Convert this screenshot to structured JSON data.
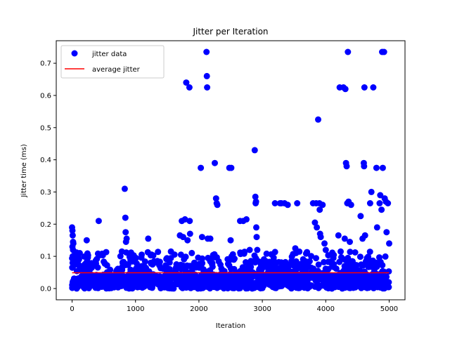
{
  "chart_data": {
    "type": "scatter",
    "title": "Jitter per Iteration",
    "xlabel": "Iteration",
    "ylabel": "Jitter time (ms)",
    "xlim": [
      -250,
      5250
    ],
    "ylim": [
      -0.035,
      0.77
    ],
    "xticks": [
      0,
      1000,
      2000,
      3000,
      4000,
      5000
    ],
    "yticks": [
      0.0,
      0.1,
      0.2,
      0.3,
      0.4,
      0.5,
      0.6,
      0.7
    ],
    "grid": false,
    "legend_position": "top-left",
    "series": [
      {
        "name": "jitter data",
        "kind": "scatter",
        "color": "#0000ff",
        "x": [
          0,
          5,
          10,
          15,
          20,
          5,
          15,
          10,
          5,
          20,
          30,
          60,
          90,
          120,
          230,
          420,
          830,
          840,
          845,
          850,
          860,
          1200,
          1700,
          1750,
          1800,
          1850,
          1855,
          1860,
          1730,
          1780,
          1820,
          2030,
          2050,
          2120,
          2125,
          2130,
          2140,
          2180,
          2250,
          2270,
          2280,
          2290,
          2480,
          2500,
          2510,
          2650,
          2700,
          2750,
          2800,
          2880,
          2890,
          2895,
          2900,
          2905,
          2910,
          2920,
          3200,
          3280,
          3300,
          3350,
          3400,
          3550,
          3520,
          3800,
          3830,
          3850,
          3860,
          3880,
          3900,
          3905,
          3910,
          3920,
          3950,
          3980,
          4000,
          4200,
          4220,
          4280,
          4300,
          4310,
          4320,
          4330,
          4340,
          4350,
          4360,
          4380,
          4400,
          4550,
          4580,
          4600,
          4605,
          4610,
          4620,
          4700,
          4720,
          4750,
          4800,
          4810,
          4850,
          4860,
          4880,
          4890,
          4900,
          4920,
          4930,
          4950,
          4960,
          4980,
          5000
        ],
        "y": [
          0.19,
          0.18,
          0.165,
          0.145,
          0.14,
          0.13,
          0.12,
          0.1,
          0.065,
          0.01,
          0.005,
          0.075,
          0.005,
          0.11,
          0.15,
          0.21,
          0.31,
          0.22,
          0.175,
          0.145,
          0.155,
          0.155,
          0.165,
          0.16,
          0.64,
          0.625,
          0.21,
          0.17,
          0.21,
          0.215,
          0.15,
          0.375,
          0.16,
          0.735,
          0.66,
          0.625,
          0.155,
          0.155,
          0.39,
          0.28,
          0.265,
          0.26,
          0.375,
          0.15,
          0.375,
          0.21,
          0.21,
          0.215,
          0.12,
          0.43,
          0.285,
          0.265,
          0.27,
          0.19,
          0.16,
          0.12,
          0.265,
          0.265,
          0.265,
          0.265,
          0.26,
          0.265,
          0.125,
          0.265,
          0.205,
          0.265,
          0.19,
          0.525,
          0.265,
          0.245,
          0.17,
          0.16,
          0.26,
          0.14,
          0.12,
          0.165,
          0.625,
          0.625,
          0.155,
          0.62,
          0.39,
          0.38,
          0.265,
          0.735,
          0.27,
          0.145,
          0.26,
          0.225,
          0.155,
          0.39,
          0.38,
          0.625,
          0.165,
          0.265,
          0.3,
          0.625,
          0.375,
          0.19,
          0.265,
          0.29,
          0.245,
          0.735,
          0.375,
          0.735,
          0.28,
          0.27,
          0.175,
          0.265,
          0.14
        ],
        "dense_band": {
          "x_range": [
            0,
            5000
          ],
          "y_range": [
            0.0,
            0.115
          ],
          "note": "thousands of points cluster between 0 and ~0.11 ms across all iterations"
        }
      },
      {
        "name": "average jitter",
        "kind": "line",
        "color": "#ff0000",
        "x": [
          0,
          5000
        ],
        "y": [
          0.049,
          0.049
        ]
      }
    ]
  }
}
